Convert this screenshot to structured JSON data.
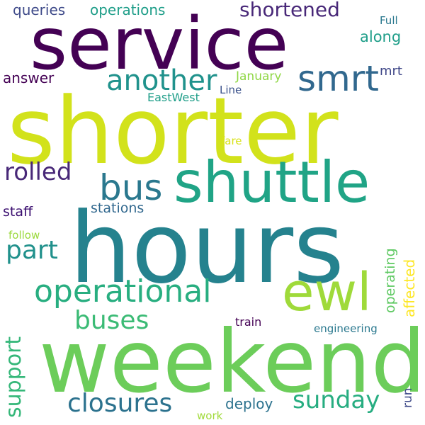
{
  "colors": {
    "background": "#ffffff",
    "palette": [
      "#440154",
      "#3b528b",
      "#21918c",
      "#5ec962",
      "#fde725"
    ]
  },
  "words": {
    "service": "service",
    "shorter": "shorter",
    "hours": "hours",
    "weekend": "weekend",
    "shuttle": "shuttle",
    "ewl": "ewl",
    "operational": "operational",
    "smrt": "smrt",
    "another": "another",
    "bus": "bus",
    "shortened": "shortened",
    "closures": "closures",
    "sunday": "sunday",
    "buses": "buses",
    "rolled": "rolled",
    "part": "part",
    "support": "support",
    "queries": "queries",
    "operations": "operations",
    "along": "along",
    "answer": "answer",
    "january": "January",
    "mrt": "mrt",
    "full": "Full",
    "eastwest": "EastWest",
    "line": "Line",
    "fare": "fare",
    "staff": "staff",
    "stations": "stations",
    "follow": "follow",
    "operating": "operating",
    "affected": "affected",
    "run": "run",
    "train": "train",
    "engineering": "engineering",
    "deploy": "deploy",
    "work": "work"
  }
}
